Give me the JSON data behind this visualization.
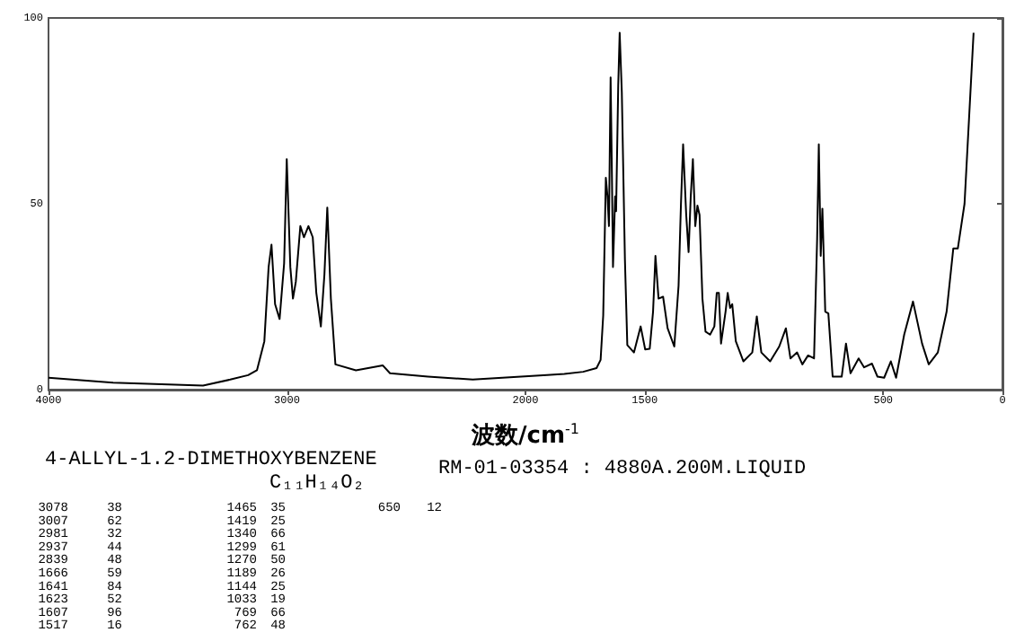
{
  "chart_data": {
    "type": "line",
    "title": "4-ALLYL-1.2-DIMETHOXYBENZENE",
    "subtitle": "C₁₁H₁₄O₂",
    "xlabel": "波数/cm$^{-1}$",
    "x": [
      4000,
      3729,
      3352,
      3238,
      3163,
      3126,
      3095,
      3077,
      3065,
      3050,
      3031,
      3012,
      3001,
      2986,
      2975,
      2963,
      2944,
      2929,
      2910,
      2892,
      2877,
      2858,
      2843,
      2831,
      2816,
      2797,
      2711,
      2598,
      2568,
      2409,
      2221,
      1910,
      1837,
      1758,
      1702,
      1685,
      1674,
      1663,
      1656,
      1650,
      1643,
      1637,
      1633,
      1624,
      1620,
      1611,
      1605,
      1596,
      1583,
      1573,
      1545,
      1517,
      1498,
      1479,
      1465,
      1455,
      1442,
      1423,
      1404,
      1376,
      1358,
      1348,
      1339,
      1326,
      1316,
      1307,
      1298,
      1288,
      1279,
      1270,
      1258,
      1245,
      1226,
      1208,
      1198,
      1189,
      1180,
      1161,
      1152,
      1142,
      1133,
      1118,
      1086,
      1049,
      1030,
      1011,
      974,
      936,
      908,
      889,
      861,
      839,
      815,
      790,
      777,
      770,
      762,
      755,
      743,
      730,
      712,
      674,
      656,
      637,
      603,
      580,
      547,
      524,
      496,
      468,
      446,
      412,
      375,
      337,
      309,
      271,
      234,
      206,
      187,
      159,
      140,
      121
    ],
    "series": [
      {
        "color": "#000000",
        "values": [
          3.2,
          1.9,
          1.1,
          2.7,
          3.9,
          5.2,
          13,
          33,
          39,
          23,
          19,
          34,
          62,
          33,
          24.5,
          29,
          44,
          41,
          44,
          41,
          26,
          17,
          31,
          49,
          24.5,
          6.8,
          5.2,
          6.5,
          4.4,
          3.5,
          2.7,
          3.9,
          4.2,
          4.8,
          5.8,
          8,
          20,
          57,
          52,
          44,
          84,
          55,
          33,
          52,
          48,
          82,
          96,
          80,
          35,
          12,
          10,
          17,
          10.8,
          11,
          21,
          36,
          24.5,
          25,
          16.5,
          11.6,
          28,
          50,
          66,
          47,
          37,
          52,
          62,
          44,
          49.5,
          47,
          24.5,
          15.6,
          14.8,
          17,
          26,
          26,
          12.4,
          21,
          26,
          22,
          23,
          13,
          7.6,
          10,
          19.7,
          10,
          7.6,
          11.6,
          16.5,
          8.4,
          10,
          6.8,
          9.2,
          8.4,
          40.6,
          66,
          36,
          48.7,
          21,
          20.5,
          3.5,
          3.5,
          12.4,
          4.4,
          8.4,
          6,
          7,
          3.5,
          3.2,
          7.6,
          3.2,
          14.8,
          23.7,
          12.4,
          6.8,
          10,
          21,
          38,
          38,
          50,
          73,
          96
        ]
      }
    ],
    "xlim": [
      4000,
      0
    ],
    "xticks": [
      4000,
      3000,
      2000,
      1500,
      500,
      0
    ],
    "ylim": [
      0,
      100
    ],
    "yticks": [
      0,
      50,
      100
    ],
    "grid": false,
    "marker": "none",
    "line_style": "solid",
    "annotations": [
      "RM-01-03354 : 4880A.200M.LIQUID",
      "3078 38",
      "3007 62",
      "2981 32",
      "2937 44",
      "2839 48",
      "1666 59",
      "1641 84",
      "1623 52",
      "1607 96",
      "1517 16",
      "1465 35",
      "1419 25",
      "1340 66",
      "1299 61",
      "1270 50",
      "1189 26",
      "1144 25",
      "1033 19",
      "769 66",
      "762 48",
      "650 12"
    ]
  }
}
